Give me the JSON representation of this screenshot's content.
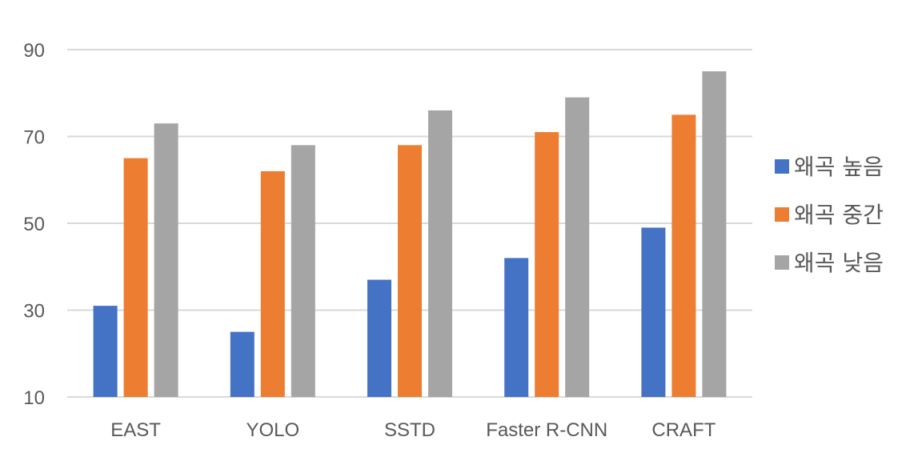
{
  "chart_data": {
    "type": "bar",
    "categories": [
      "EAST",
      "YOLO",
      "SSTD",
      "Faster R-CNN",
      "CRAFT"
    ],
    "series": [
      {
        "name": "왜곡 높음",
        "color": "#4472c4",
        "values": [
          31,
          25,
          37,
          42,
          49
        ]
      },
      {
        "name": "왜곡 중간",
        "color": "#ed7d31",
        "values": [
          65,
          62,
          68,
          71,
          75
        ]
      },
      {
        "name": "왜곡 낮음",
        "color": "#a5a5a5",
        "values": [
          73,
          68,
          76,
          79,
          85
        ]
      }
    ],
    "ylim": [
      10,
      90
    ],
    "yticks": [
      10,
      30,
      50,
      70,
      90
    ],
    "grid": true,
    "legend": "right"
  }
}
